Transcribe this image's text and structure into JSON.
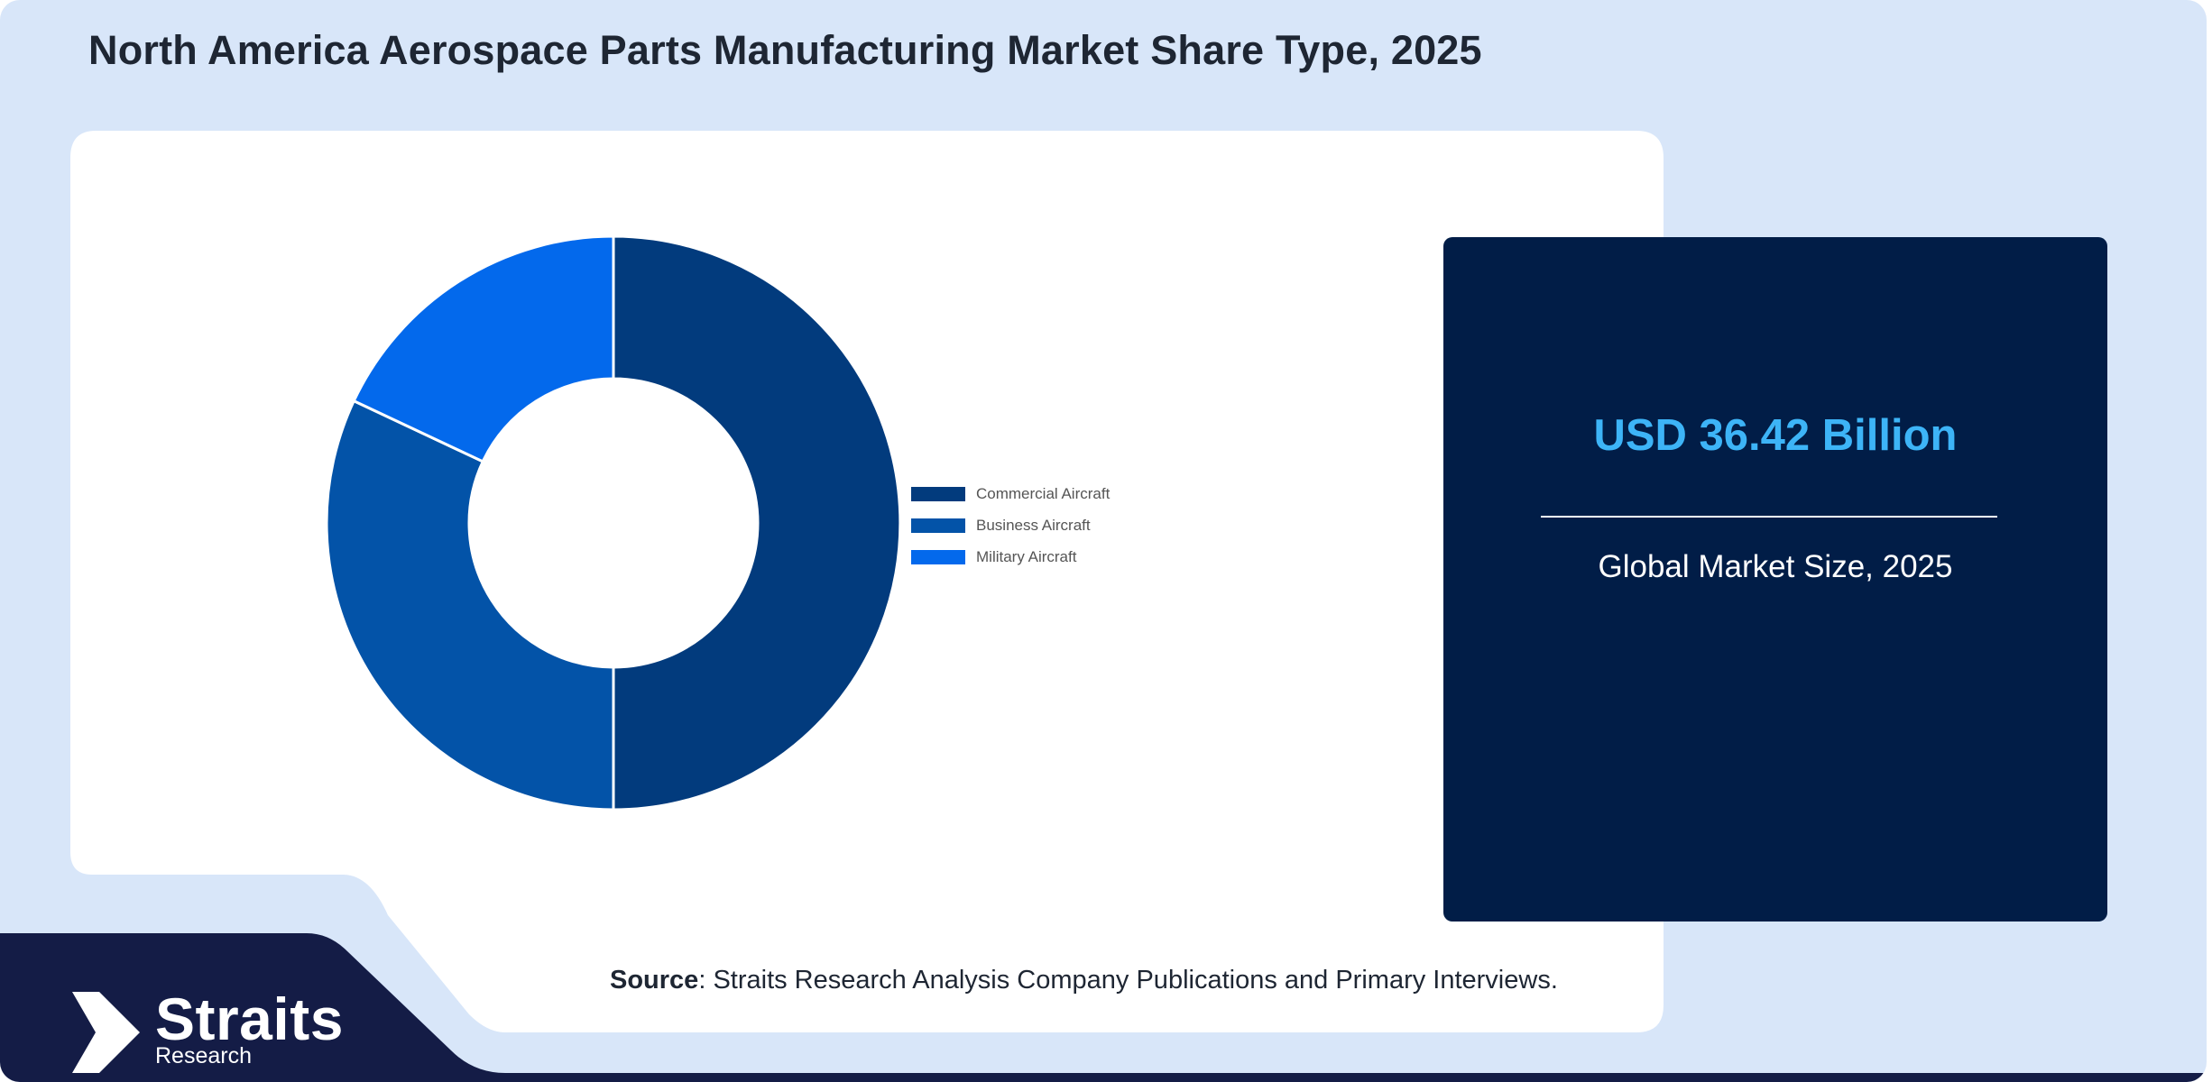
{
  "title": "North America Aerospace Parts Manufacturing Market Share Type, 2025",
  "chart_data": {
    "type": "pie",
    "title": "",
    "categories": [
      "Commercial Aircraft",
      "Business Aircraft",
      "Military Aircraft"
    ],
    "values": [
      50,
      32,
      18
    ],
    "unit": "%",
    "colors": [
      "#023b7d",
      "#0353a8",
      "#0369ec"
    ],
    "donut": true,
    "legend_position": "right"
  },
  "market_size": {
    "value": "USD 36.42 Billion",
    "caption": "Global Market Size, 2025"
  },
  "source": {
    "label": "Source",
    "text": ": Straits Research Analysis Company Publications and Primary Interviews."
  },
  "brand": {
    "name": "Straits",
    "subtitle": "Research",
    "colors": {
      "navy": "#141c46",
      "background": "#d8e6f9",
      "accent": "#3db4f7"
    }
  }
}
